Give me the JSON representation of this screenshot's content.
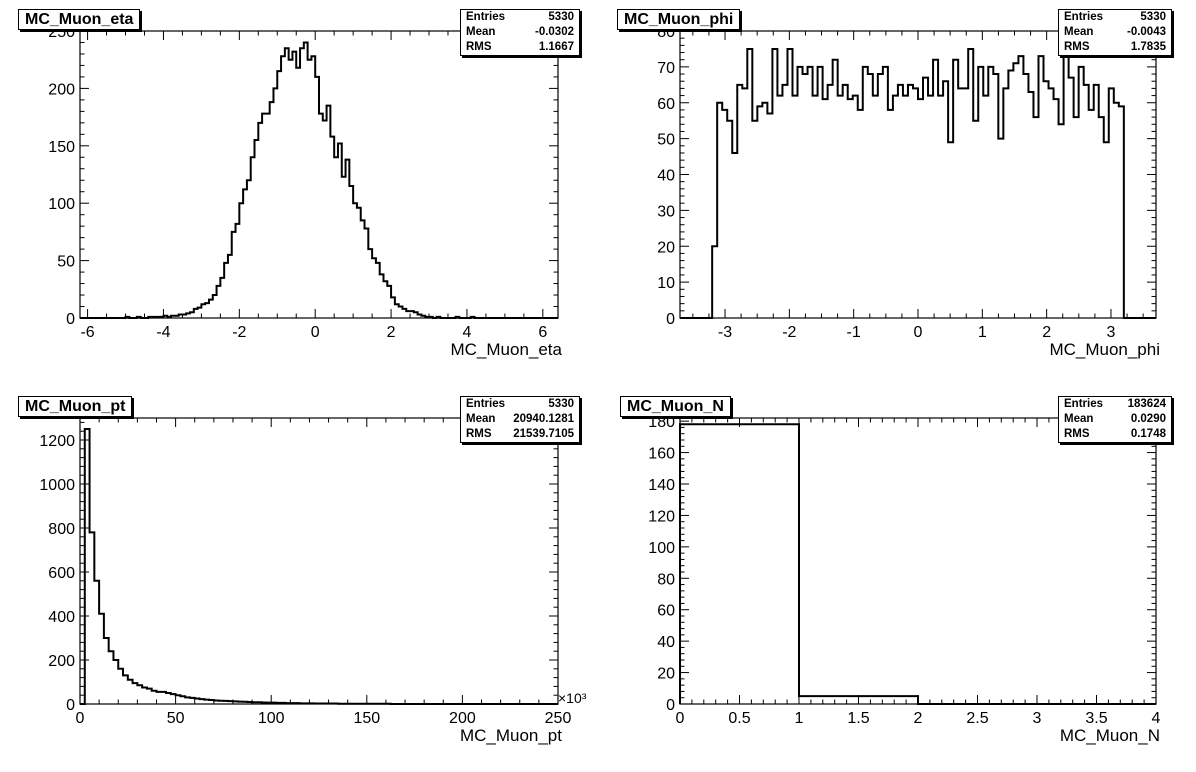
{
  "chart_data": [
    {
      "type": "bar",
      "title": "MC_Muon_eta",
      "xlabel": "MC_Muon_eta",
      "ylabel": "",
      "stats": {
        "entries_label": "Entries",
        "entries": "5330",
        "mean_label": "Mean",
        "mean": "-0.0302",
        "rms_label": "RMS",
        "rms": "1.1667"
      },
      "xlim": [
        -6.2,
        6.4
      ],
      "ylim": [
        0,
        250
      ],
      "xticks": [
        -6,
        -4,
        -2,
        0,
        2,
        4,
        6
      ],
      "yticks": [
        0,
        50,
        100,
        150,
        200,
        250
      ],
      "xtick_labels": [
        "-6",
        "-4",
        "-2",
        "0",
        "2",
        "4",
        "6"
      ],
      "ytick_labels": [
        "0",
        "50",
        "100",
        "150",
        "200",
        "250"
      ],
      "bin_edges_range": [
        -5,
        5.2
      ],
      "values": [
        1,
        0,
        0,
        1,
        0,
        0,
        1,
        1,
        1,
        1,
        2,
        1,
        2,
        2,
        3,
        3,
        4,
        5,
        8,
        9,
        12,
        13,
        16,
        20,
        28,
        35,
        48,
        55,
        75,
        82,
        100,
        112,
        120,
        140,
        155,
        170,
        178,
        178,
        188,
        200,
        215,
        228,
        235,
        225,
        232,
        218,
        235,
        240,
        225,
        228,
        210,
        178,
        172,
        185,
        158,
        140,
        152,
        123,
        138,
        115,
        100,
        96,
        85,
        78,
        60,
        52,
        48,
        38,
        32,
        28,
        18,
        12,
        10,
        8,
        6,
        6,
        5,
        3,
        2,
        1,
        1,
        0,
        1,
        0,
        0,
        0,
        0,
        1,
        0,
        0,
        0,
        1,
        0,
        0,
        0,
        0,
        0,
        0,
        0,
        0,
        0,
        0
      ],
      "multiplier": ""
    },
    {
      "type": "bar",
      "title": "MC_Muon_phi",
      "xlabel": "MC_Muon_phi",
      "ylabel": "",
      "stats": {
        "entries_label": "Entries",
        "entries": "5330",
        "mean_label": "Mean",
        "mean": "-0.0043",
        "rms_label": "RMS",
        "rms": "1.7835"
      },
      "xlim": [
        -3.7,
        3.7
      ],
      "ylim": [
        0,
        80
      ],
      "xticks": [
        -3,
        -2,
        -1,
        0,
        1,
        2,
        3
      ],
      "yticks": [
        0,
        10,
        20,
        30,
        40,
        50,
        60,
        70,
        80
      ],
      "xtick_labels": [
        "-3",
        "-2",
        "-1",
        "0",
        "1",
        "2",
        "3"
      ],
      "ytick_labels": [
        "0",
        "10",
        "20",
        "30",
        "40",
        "50",
        "60",
        "70",
        "80"
      ],
      "bin_edges_range": [
        -3.2,
        3.2
      ],
      "values": [
        20,
        60,
        58,
        55,
        46,
        65,
        64,
        75,
        55,
        59,
        60,
        57,
        75,
        62,
        65,
        75,
        62,
        70,
        68,
        70,
        62,
        70,
        61,
        65,
        72,
        62,
        65,
        61,
        62,
        58,
        70,
        68,
        62,
        68,
        70,
        58,
        62,
        65,
        62,
        65,
        64,
        61,
        67,
        62,
        72,
        62,
        66,
        49,
        72,
        64,
        64,
        75,
        55,
        70,
        62,
        70,
        68,
        50,
        64,
        69,
        71,
        73,
        68,
        63,
        56,
        73,
        66,
        64,
        61,
        54,
        75,
        67,
        56,
        70,
        65,
        58,
        65,
        56,
        49,
        64,
        60,
        59
      ],
      "multiplier": ""
    },
    {
      "type": "bar",
      "title": "MC_Muon_pt",
      "xlabel": "MC_Muon_pt",
      "ylabel": "",
      "stats": {
        "entries_label": "Entries",
        "entries": "5330",
        "mean_label": "Mean",
        "mean": "20940.1281",
        "rms_label": "RMS",
        "rms": "21539.7105"
      },
      "xlim": [
        0,
        250
      ],
      "ylim": [
        0,
        1300
      ],
      "xticks": [
        0,
        50,
        100,
        150,
        200,
        250
      ],
      "yticks": [
        0,
        200,
        400,
        600,
        800,
        1000,
        1200
      ],
      "xtick_labels": [
        "0",
        "50",
        "100",
        "150",
        "200",
        "250"
      ],
      "ytick_labels": [
        "0",
        "200",
        "400",
        "600",
        "800",
        "1000",
        "1200"
      ],
      "bin_edges_range": [
        2.5,
        250
      ],
      "values": [
        1250,
        780,
        560,
        410,
        300,
        240,
        200,
        160,
        130,
        110,
        95,
        85,
        75,
        70,
        60,
        55,
        55,
        50,
        45,
        40,
        35,
        30,
        28,
        25,
        22,
        20,
        18,
        16,
        15,
        14,
        13,
        12,
        11,
        10,
        9,
        8,
        8,
        7,
        6,
        6,
        5,
        5,
        4,
        4,
        4,
        3,
        3,
        3,
        2,
        2,
        2,
        2,
        2,
        1,
        1,
        1,
        1,
        1,
        1,
        1,
        1,
        1,
        1,
        1,
        0,
        0,
        0,
        0,
        0,
        0,
        0,
        0,
        0,
        0,
        0,
        0,
        0,
        0,
        0,
        0,
        0,
        0,
        0,
        0,
        0,
        0,
        0,
        0,
        0,
        0,
        0,
        0,
        0,
        0,
        0,
        0,
        0,
        0,
        0
      ],
      "multiplier": "×10³"
    },
    {
      "type": "bar",
      "title": "MC_Muon_N",
      "xlabel": "MC_Muon_N",
      "ylabel": "",
      "stats": {
        "entries_label": "Entries",
        "entries": "183624",
        "mean_label": "Mean",
        "mean": "0.0290",
        "rms_label": "RMS",
        "rms": "0.1748"
      },
      "xlim": [
        0,
        4
      ],
      "ylim": [
        0,
        182
      ],
      "xticks": [
        0,
        0.5,
        1,
        1.5,
        2,
        2.5,
        3,
        3.5,
        4
      ],
      "yticks": [
        0,
        20,
        40,
        60,
        80,
        100,
        120,
        140,
        160,
        180
      ],
      "xtick_labels": [
        "0",
        "0.5",
        "1",
        "1.5",
        "2",
        "2.5",
        "3",
        "3.5",
        "4"
      ],
      "ytick_labels": [
        "0",
        "20",
        "40",
        "60",
        "80",
        "100",
        "120",
        "140",
        "160",
        "180"
      ],
      "bin_edges_range": [
        0,
        2
      ],
      "values": [
        178,
        5
      ],
      "multiplier": ""
    }
  ]
}
